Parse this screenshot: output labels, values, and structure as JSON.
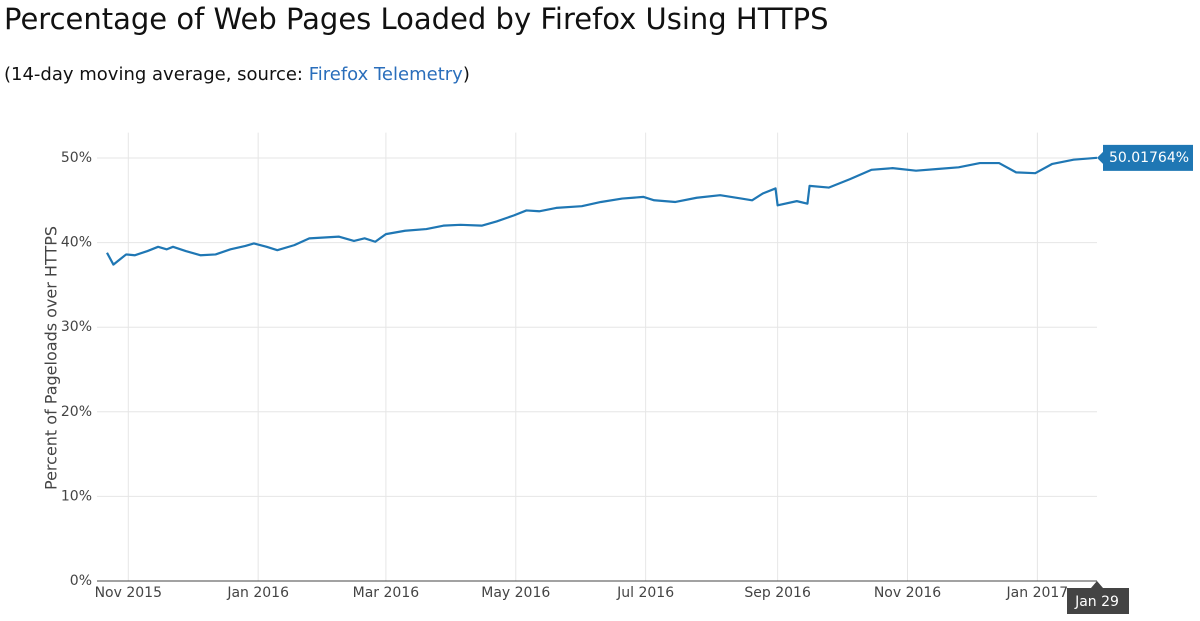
{
  "chart_data": {
    "type": "line",
    "title": "Percentage of Web Pages Loaded by Firefox Using HTTPS",
    "subtitle": {
      "start": "(14-day moving average, source: ",
      "link": "Firefox Telemetry",
      "end": ")"
    },
    "y_label": "Percent of Pageloads over HTTPS",
    "x": [
      "2015-10-22",
      "2015-10-25",
      "2015-10-28",
      "2015-10-31",
      "2015-11-04",
      "2015-11-10",
      "2015-11-15",
      "2015-11-19",
      "2015-11-22",
      "2015-11-28",
      "2015-12-05",
      "2015-12-12",
      "2015-12-19",
      "2015-12-26",
      "2015-12-30",
      "2016-01-05",
      "2016-01-10",
      "2016-01-18",
      "2016-01-25",
      "2016-02-08",
      "2016-02-15",
      "2016-02-20",
      "2016-02-25",
      "2016-03-01",
      "2016-03-10",
      "2016-03-20",
      "2016-03-28",
      "2016-04-05",
      "2016-04-15",
      "2016-04-22",
      "2016-04-30",
      "2016-05-06",
      "2016-05-12",
      "2016-05-20",
      "2016-06-01",
      "2016-06-10",
      "2016-06-20",
      "2016-06-30",
      "2016-07-05",
      "2016-07-15",
      "2016-07-25",
      "2016-08-05",
      "2016-08-15",
      "2016-08-20",
      "2016-08-25",
      "2016-08-31",
      "2016-09-01",
      "2016-09-10",
      "2016-09-15",
      "2016-09-16",
      "2016-09-25",
      "2016-10-05",
      "2016-10-15",
      "2016-10-25",
      "2016-11-05",
      "2016-11-15",
      "2016-11-25",
      "2016-12-05",
      "2016-12-14",
      "2016-12-22",
      "2016-12-31",
      "2017-01-08",
      "2017-01-18",
      "2017-01-29"
    ],
    "series": [
      {
        "name": "HTTPS",
        "color": "#1f77b4",
        "values": [
          38.8,
          37.4,
          38.0,
          38.6,
          38.5,
          39.0,
          39.5,
          39.2,
          39.5,
          39.0,
          38.5,
          38.6,
          39.2,
          39.6,
          39.9,
          39.5,
          39.1,
          39.7,
          40.5,
          40.7,
          40.2,
          40.5,
          40.1,
          41.0,
          41.4,
          41.6,
          42.0,
          42.1,
          42.0,
          42.5,
          43.2,
          43.8,
          43.7,
          44.1,
          44.3,
          44.8,
          45.2,
          45.4,
          45.0,
          44.8,
          45.3,
          45.6,
          45.2,
          45.0,
          45.8,
          46.4,
          44.4,
          44.9,
          44.6,
          46.7,
          46.5,
          47.5,
          48.6,
          48.8,
          48.5,
          48.7,
          48.9,
          49.4,
          49.4,
          48.3,
          48.2,
          49.3,
          49.8,
          50.01764
        ]
      }
    ],
    "hover": {
      "value_label": "50.01764%",
      "x_label": "Jan 29"
    },
    "xlim": [
      "2015-10-22",
      "2017-01-29"
    ],
    "xticks": [
      {
        "value": "2015-11-01",
        "label": "Nov 2015"
      },
      {
        "value": "2016-01-01",
        "label": "Jan 2016"
      },
      {
        "value": "2016-03-01",
        "label": "Mar 2016"
      },
      {
        "value": "2016-05-01",
        "label": "May 2016"
      },
      {
        "value": "2016-07-01",
        "label": "Jul 2016"
      },
      {
        "value": "2016-09-01",
        "label": "Sep 2016"
      },
      {
        "value": "2016-11-01",
        "label": "Nov 2016"
      },
      {
        "value": "2017-01-01",
        "label": "Jan 2017"
      }
    ],
    "ylim": [
      0,
      53
    ],
    "yticks": [
      {
        "value": 0,
        "label": "0%"
      },
      {
        "value": 10,
        "label": "10%"
      },
      {
        "value": 20,
        "label": "20%"
      },
      {
        "value": 30,
        "label": "30%"
      },
      {
        "value": 40,
        "label": "40%"
      },
      {
        "value": 50,
        "label": "50%"
      }
    ],
    "grid": true
  }
}
